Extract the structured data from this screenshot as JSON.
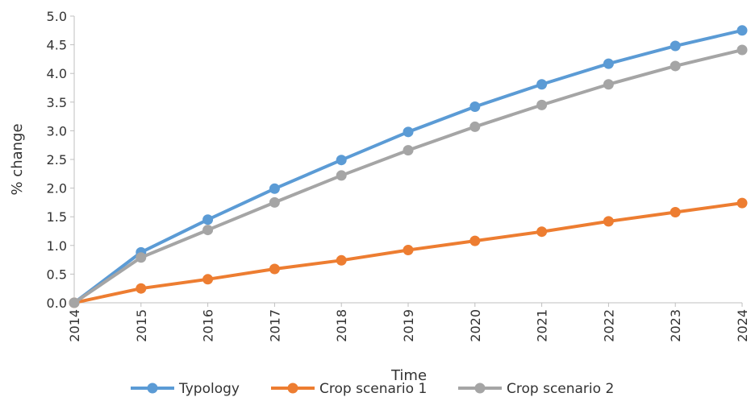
{
  "chart_data": {
    "type": "line",
    "title": "",
    "xlabel": "Time",
    "ylabel": "% change",
    "x": [
      "2014",
      "2015",
      "2016",
      "2017",
      "2018",
      "2019",
      "2020",
      "2021",
      "2022",
      "2023",
      "2024"
    ],
    "ylim": [
      0,
      5
    ],
    "yticks": [
      "0.0",
      "0.5",
      "1.0",
      "1.5",
      "2.0",
      "2.5",
      "3.0",
      "3.5",
      "4.0",
      "4.5",
      "5.0"
    ],
    "grid": false,
    "legend_position": "bottom",
    "series": [
      {
        "name": "Typology",
        "color": "#5b9bd5",
        "values": [
          0.0,
          0.88,
          1.45,
          1.99,
          2.49,
          2.98,
          3.42,
          3.81,
          4.17,
          4.48,
          4.75
        ]
      },
      {
        "name": "Crop scenario 1",
        "color": "#ed7d31",
        "values": [
          0.0,
          0.25,
          0.41,
          0.59,
          0.74,
          0.92,
          1.08,
          1.24,
          1.42,
          1.58,
          1.74
        ]
      },
      {
        "name": "Crop scenario 2",
        "color": "#a5a5a5",
        "values": [
          0.0,
          0.79,
          1.27,
          1.75,
          2.22,
          2.66,
          3.07,
          3.45,
          3.81,
          4.13,
          4.41
        ]
      }
    ]
  }
}
